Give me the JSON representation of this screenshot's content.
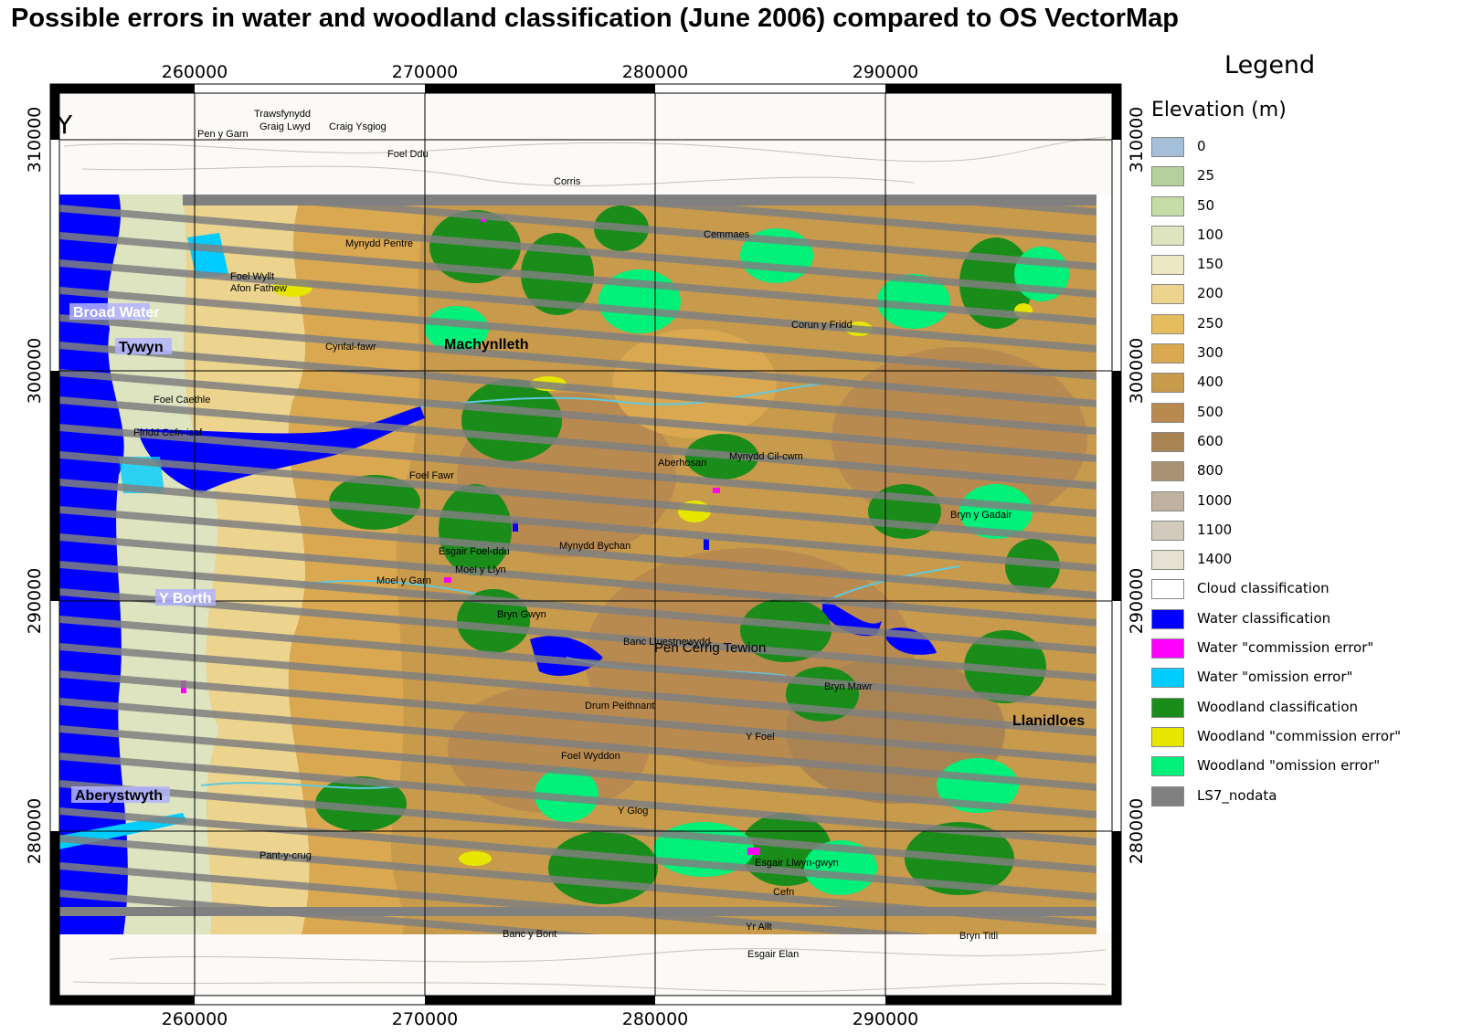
{
  "title": "Possible errors in water and woodland classification (June 2006) compared to OS VectorMap",
  "grid": {
    "x_top": [
      "260000",
      "270000",
      "280000",
      "290000"
    ],
    "x_bottom": [
      "260000",
      "270000",
      "280000",
      "290000"
    ],
    "y_left": [
      "310000",
      "300000",
      "290000",
      "280000"
    ],
    "y_right": [
      "310000",
      "300000",
      "290000",
      "280000"
    ]
  },
  "north_letter": "Y",
  "place_labels": [
    "Broad Water",
    "Tywyn",
    "Machynlleth",
    "Y Borth",
    "Aberystwyth",
    "Llanidloes",
    "Foel Wyllt",
    "Mynydd Pentre",
    "Cemmaes",
    "Corris",
    "Foel Ddu",
    "Trawsfynydd",
    "Graig Lwyd",
    "Craig Ysgiog",
    "Pen y Garn",
    "Mynydd Cil-cwm",
    "Mynydd Bychan",
    "Moel y Llyn",
    "Esgair Foel-ddu",
    "Moel y Garn",
    "Bryn Gwyn",
    "Banc Lluestnewydd",
    "Pen Cerrig Tewion",
    "Drum Peithnant",
    "Foel Wyddon",
    "Bryn Mawr",
    "Y Foel",
    "Y Glog",
    "Esgair Llwyn-gwyn",
    "Cefn",
    "Yr Allt",
    "Esgair Elan",
    "Bryn Titli",
    "Banc y Bont",
    "Pant-y-crug",
    "Bryn y Gadair",
    "Foel Fawr",
    "Corun y Fridd",
    "Foel Caethle",
    "Ffridd Cefn-isaf",
    "Afon Fathew",
    "Cynfal-fawr",
    "Aberhosan"
  ],
  "legend": {
    "title": "Legend",
    "subtitle": "Elevation (m)",
    "items": [
      {
        "label": "0",
        "color": "#a6bfd9"
      },
      {
        "label": "25",
        "color": "#b6cf9c"
      },
      {
        "label": "50",
        "color": "#c6dca6"
      },
      {
        "label": "100",
        "color": "#dde4bf"
      },
      {
        "label": "150",
        "color": "#ede8c3"
      },
      {
        "label": "200",
        "color": "#ecd48e"
      },
      {
        "label": "250",
        "color": "#e5bd5e"
      },
      {
        "label": "300",
        "color": "#d9a850"
      },
      {
        "label": "400",
        "color": "#c79a4c"
      },
      {
        "label": "500",
        "color": "#b98a50"
      },
      {
        "label": "600",
        "color": "#a98452"
      },
      {
        "label": "800",
        "color": "#a99272"
      },
      {
        "label": "1000",
        "color": "#c0b2a0"
      },
      {
        "label": "1100",
        "color": "#d2c9bd"
      },
      {
        "label": "1400",
        "color": "#e6e1d3"
      },
      {
        "label": "Cloud classification",
        "color": "#ffffff"
      },
      {
        "label": "Water classification",
        "color": "#0000ff"
      },
      {
        "label": "Water \"commission error\"",
        "color": "#ff00ff"
      },
      {
        "label": "Water \"omission error\"",
        "color": "#00ccff"
      },
      {
        "label": "Woodland classification",
        "color": "#1a8c1a"
      },
      {
        "label": "Woodland \"commission error\"",
        "color": "#e6e600"
      },
      {
        "label": "Woodland \"omission error\"",
        "color": "#00f07a"
      },
      {
        "label": "LS7_nodata",
        "color": "#808080"
      }
    ]
  }
}
